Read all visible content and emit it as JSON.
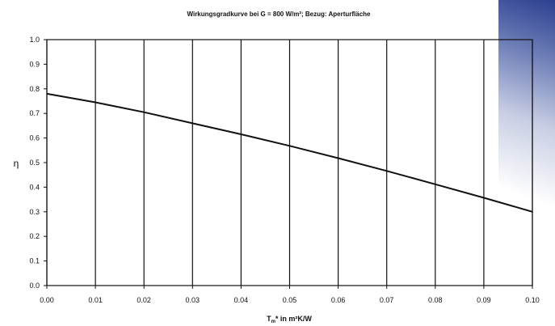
{
  "chart_data": {
    "type": "line",
    "title": "Wirkungsgradkurve bei G = 800 W/m²; Bezug: Aperturfläche",
    "ylabel": "η",
    "xlabel_main": "T",
    "xlabel_sub": "m",
    "xlabel_rest": "* in m²K/W",
    "xlim": [
      0,
      0.1
    ],
    "ylim": [
      0,
      1.0
    ],
    "grid": "vertical",
    "x_ticks": [
      "0.00",
      "0.01",
      "0.02",
      "0.03",
      "0.04",
      "0.05",
      "0.06",
      "0.07",
      "0.08",
      "0.09",
      "0.10"
    ],
    "y_ticks": [
      "0.0",
      "0.1",
      "0.2",
      "0.3",
      "0.4",
      "0.5",
      "0.6",
      "0.7",
      "0.8",
      "0.9",
      "1.0"
    ],
    "series": [
      {
        "x": [
          0.0,
          0.01,
          0.02,
          0.03,
          0.04,
          0.05,
          0.06,
          0.07,
          0.08,
          0.09,
          0.1
        ],
        "y": [
          0.78,
          0.745,
          0.705,
          0.66,
          0.615,
          0.568,
          0.518,
          0.466,
          0.412,
          0.357,
          0.3
        ]
      }
    ]
  }
}
